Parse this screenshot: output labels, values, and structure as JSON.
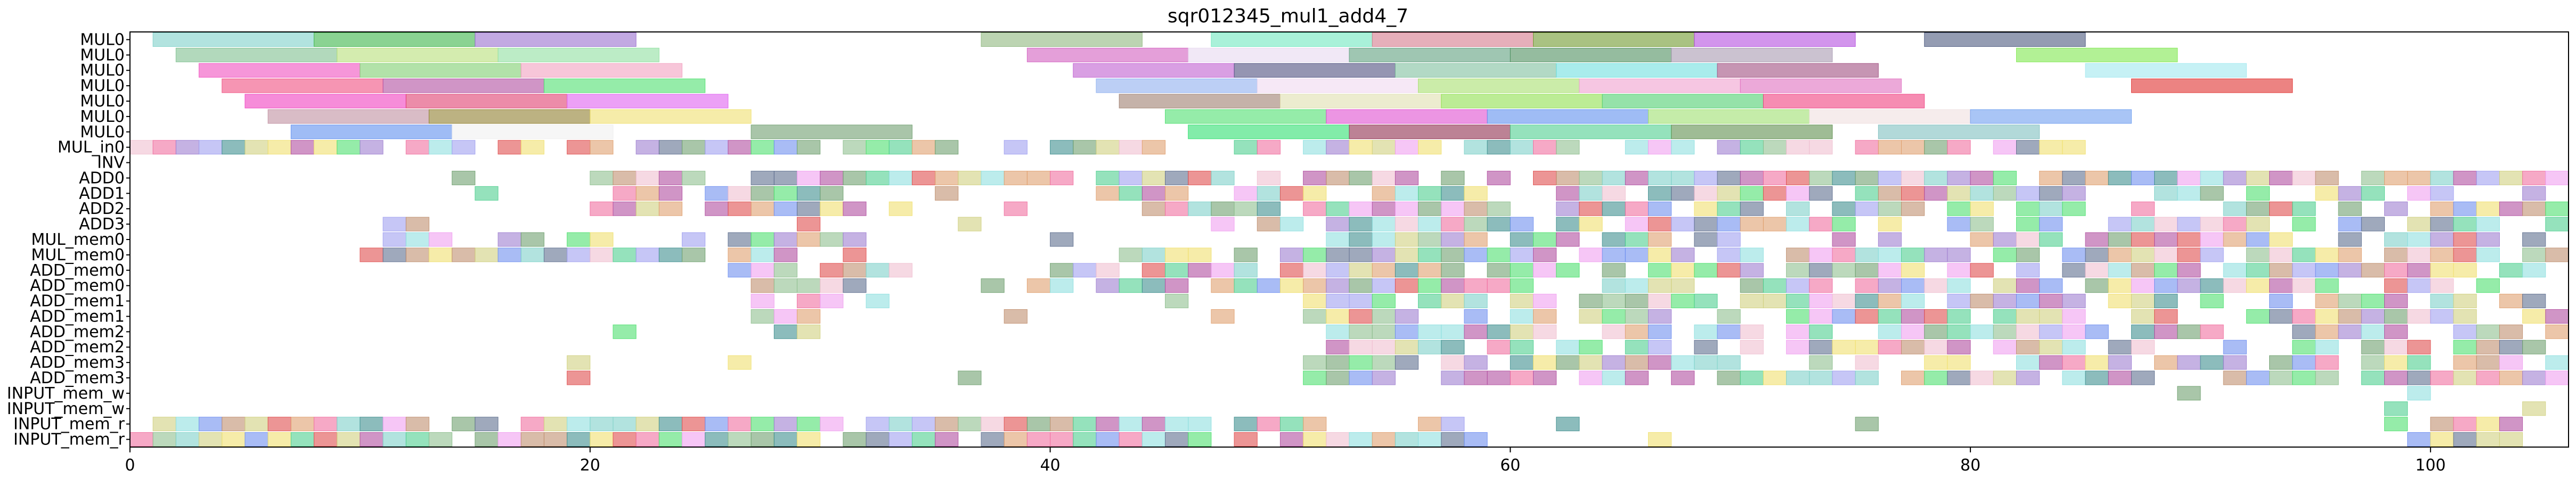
{
  "chart_data": {
    "type": "gantt",
    "title": "sqr012345_mul1_add4_7",
    "xlim": [
      0,
      106
    ],
    "xticks": [
      0,
      20,
      40,
      60,
      80,
      100
    ],
    "grid": false,
    "rows": [
      "MUL0",
      "MUL0",
      "MUL0",
      "MUL0",
      "MUL0",
      "MUL0",
      "MUL0",
      "MUL_in0",
      "INV",
      "ADD0",
      "ADD1",
      "ADD2",
      "ADD3",
      "MUL_mem0",
      "MUL_mem0",
      "ADD_mem0",
      "ADD_mem0",
      "ADD_mem1",
      "ADD_mem1",
      "ADD_mem2",
      "ADD_mem2",
      "ADD_mem3",
      "ADD_mem3",
      "INPUT_mem_w",
      "INPUT_mem_w",
      "INPUT_mem_r",
      "INPUT_mem_r"
    ],
    "bars": [
      {
        "row": 0,
        "start": 1,
        "end": 8,
        "color": "#7fd1c9"
      },
      {
        "row": 0,
        "start": 8,
        "end": 15,
        "color": "#3cb54a"
      },
      {
        "row": 0,
        "start": 15,
        "end": 22,
        "color": "#9a6fcf"
      },
      {
        "row": 0,
        "start": 37,
        "end": 44,
        "color": "#8fb77f"
      },
      {
        "row": 0,
        "start": 47,
        "end": 54,
        "color": "#6fe8c0"
      },
      {
        "row": 0,
        "start": 54,
        "end": 61,
        "color": "#d67a8c"
      },
      {
        "row": 0,
        "start": 61,
        "end": 68,
        "color": "#6f9a2f"
      },
      {
        "row": 0,
        "start": 68,
        "end": 75,
        "color": "#b44ee0"
      },
      {
        "row": 0,
        "start": 78,
        "end": 85,
        "color": "#4d5a7f"
      },
      {
        "row": 1,
        "start": 2,
        "end": 9,
        "color": "#7fbf8f"
      },
      {
        "row": 1,
        "start": 9,
        "end": 16,
        "color": "#b8e07a"
      },
      {
        "row": 1,
        "start": 16,
        "end": 23,
        "color": "#8fe0a0"
      },
      {
        "row": 1,
        "start": 39,
        "end": 46,
        "color": "#d25fc0"
      },
      {
        "row": 1,
        "start": 46,
        "end": 53,
        "color": "#e8d8f0"
      },
      {
        "row": 1,
        "start": 53,
        "end": 60,
        "color": "#5fa07f"
      },
      {
        "row": 1,
        "start": 60,
        "end": 67,
        "color": "#4f8f5f"
      },
      {
        "row": 1,
        "start": 67,
        "end": 74,
        "color": "#a89ab0"
      },
      {
        "row": 1,
        "start": 82,
        "end": 89,
        "color": "#7fe84f"
      },
      {
        "row": 2,
        "start": 3,
        "end": 10,
        "color": "#f050c0"
      },
      {
        "row": 2,
        "start": 10,
        "end": 17,
        "color": "#7fcf70"
      },
      {
        "row": 2,
        "start": 17,
        "end": 24,
        "color": "#f2a0c0"
      },
      {
        "row": 2,
        "start": 41,
        "end": 48,
        "color": "#c05fd0"
      },
      {
        "row": 2,
        "start": 48,
        "end": 55,
        "color": "#4f4f7f"
      },
      {
        "row": 2,
        "start": 55,
        "end": 62,
        "color": "#7fbf9f"
      },
      {
        "row": 2,
        "start": 62,
        "end": 69,
        "color": "#6fe0e0"
      },
      {
        "row": 2,
        "start": 69,
        "end": 76,
        "color": "#a04f80"
      },
      {
        "row": 2,
        "start": 85,
        "end": 92,
        "color": "#a0e8ef"
      },
      {
        "row": 3,
        "start": 4,
        "end": 11,
        "color": "#f04f80"
      },
      {
        "row": 3,
        "start": 11,
        "end": 18,
        "color": "#b04fa0"
      },
      {
        "row": 3,
        "start": 18,
        "end": 25,
        "color": "#4fe06f"
      },
      {
        "row": 3,
        "start": 42,
        "end": 49,
        "color": "#8fafef"
      },
      {
        "row": 3,
        "start": 49,
        "end": 56,
        "color": "#f0d8f0"
      },
      {
        "row": 3,
        "start": 56,
        "end": 63,
        "color": "#a8e06f"
      },
      {
        "row": 3,
        "start": 63,
        "end": 70,
        "color": "#f0a0cf"
      },
      {
        "row": 3,
        "start": 70,
        "end": 77,
        "color": "#e06fc0"
      },
      {
        "row": 3,
        "start": 87,
        "end": 94,
        "color": "#e0302f"
      },
      {
        "row": 4,
        "start": 5,
        "end": 12,
        "color": "#f040c0"
      },
      {
        "row": 4,
        "start": 12,
        "end": 19,
        "color": "#e0406f"
      },
      {
        "row": 4,
        "start": 19,
        "end": 26,
        "color": "#e060f0"
      },
      {
        "row": 4,
        "start": 43,
        "end": 50,
        "color": "#9f7f6f"
      },
      {
        "row": 4,
        "start": 50,
        "end": 57,
        "color": "#e0e0af"
      },
      {
        "row": 4,
        "start": 57,
        "end": 64,
        "color": "#8fe04f"
      },
      {
        "row": 4,
        "start": 64,
        "end": 71,
        "color": "#4fcf6f"
      },
      {
        "row": 4,
        "start": 71,
        "end": 78,
        "color": "#f0407f"
      },
      {
        "row": 5,
        "start": 6,
        "end": 13,
        "color": "#c08fa0"
      },
      {
        "row": 5,
        "start": 13,
        "end": 20,
        "color": "#8f7f2f"
      },
      {
        "row": 5,
        "start": 20,
        "end": 27,
        "color": "#f0e06f"
      },
      {
        "row": 5,
        "start": 45,
        "end": 52,
        "color": "#4fe06f"
      },
      {
        "row": 5,
        "start": 52,
        "end": 59,
        "color": "#e04fd0"
      },
      {
        "row": 5,
        "start": 59,
        "end": 66,
        "color": "#5f8fef"
      },
      {
        "row": 5,
        "start": 66,
        "end": 73,
        "color": "#9fe06f"
      },
      {
        "row": 5,
        "start": 73,
        "end": 80,
        "color": "#f0e0e0"
      },
      {
        "row": 5,
        "start": 80,
        "end": 87,
        "color": "#6f9ff0"
      },
      {
        "row": 6,
        "start": 7,
        "end": 14,
        "color": "#5f8fef"
      },
      {
        "row": 6,
        "start": 14,
        "end": 21,
        "color": "#f0f0f0"
      },
      {
        "row": 6,
        "start": 27,
        "end": 34,
        "color": "#6f9f6f"
      },
      {
        "row": 6,
        "start": 46,
        "end": 53,
        "color": "#2fe06f"
      },
      {
        "row": 6,
        "start": 53,
        "end": 60,
        "color": "#8f2f4f"
      },
      {
        "row": 6,
        "start": 60,
        "end": 67,
        "color": "#4fcf8f"
      },
      {
        "row": 6,
        "start": 67,
        "end": 74,
        "color": "#5f8f4f"
      },
      {
        "row": 6,
        "start": 76,
        "end": 83,
        "color": "#7fbfbf"
      }
    ],
    "dense_rows": {
      "7": {
        "slots": [
          [
            0,
            36
          ],
          [
            38,
            39
          ],
          [
            40,
            45
          ],
          [
            47,
            63
          ],
          [
            65,
            85
          ]
        ],
        "fill": 0.92
      },
      "8": {
        "slots": [],
        "fill": 0
      },
      "9": {
        "slots": [
          [
            14,
            15
          ],
          [
            20,
            106
          ]
        ],
        "fill": 0.85
      },
      "10": {
        "slots": [
          [
            15,
            16
          ],
          [
            17,
            18
          ],
          [
            21,
            31
          ],
          [
            35,
            36
          ],
          [
            42,
            106
          ]
        ],
        "fill": 0.8
      },
      "11": {
        "slots": [
          [
            20,
            24
          ],
          [
            25,
            34
          ],
          [
            38,
            39
          ],
          [
            44,
            106
          ]
        ],
        "fill": 0.78
      },
      "12": {
        "slots": [
          [
            11,
            13
          ],
          [
            29,
            30
          ],
          [
            36,
            37
          ],
          [
            47,
            106
          ]
        ],
        "fill": 0.8
      },
      "13": {
        "slots": [
          [
            10,
            32
          ],
          [
            40,
            42
          ],
          [
            52,
            106
          ]
        ],
        "fill": 0.7
      },
      "14": {
        "slots": [
          [
            10,
            32
          ],
          [
            43,
            106
          ]
        ],
        "fill": 0.75
      },
      "15": {
        "slots": [
          [
            26,
            34
          ],
          [
            40,
            106
          ]
        ],
        "fill": 0.85
      },
      "16": {
        "slots": [
          [
            27,
            32
          ],
          [
            37,
            106
          ]
        ],
        "fill": 0.8
      },
      "17": {
        "slots": [
          [
            27,
            33
          ],
          [
            45,
            46
          ],
          [
            51,
            106
          ]
        ],
        "fill": 0.78
      },
      "18": {
        "slots": [
          [
            27,
            30
          ],
          [
            38,
            39
          ],
          [
            47,
            48
          ],
          [
            51,
            106
          ]
        ],
        "fill": 0.75
      },
      "19": {
        "slots": [
          [
            21,
            22
          ],
          [
            28,
            30
          ],
          [
            51,
            106
          ]
        ],
        "fill": 0.75
      },
      "20": {
        "slots": [
          [
            21,
            22
          ],
          [
            29,
            30
          ],
          [
            51,
            106
          ]
        ],
        "fill": 0.72
      },
      "21": {
        "slots": [
          [
            19,
            20
          ],
          [
            26,
            27
          ],
          [
            37,
            38
          ],
          [
            51,
            106
          ]
        ],
        "fill": 0.72
      },
      "22": {
        "slots": [
          [
            19,
            20
          ],
          [
            36,
            37
          ],
          [
            51,
            106
          ]
        ],
        "fill": 0.7
      },
      "23": {
        "slots": [
          [
            89,
            90
          ],
          [
            99,
            100
          ]
        ],
        "fill": 1
      },
      "24": {
        "slots": [
          [
            98,
            99
          ],
          [
            104,
            105
          ]
        ],
        "fill": 1
      },
      "25": {
        "slots": [
          [
            0,
            52
          ],
          [
            56,
            59
          ],
          [
            62,
            63
          ],
          [
            70,
            71
          ],
          [
            75,
            76
          ],
          [
            98,
            99
          ],
          [
            100,
            104
          ]
        ],
        "fill": 0.9
      },
      "26": {
        "slots": [
          [
            0,
            59
          ],
          [
            66,
            67
          ],
          [
            99,
            104
          ]
        ],
        "fill": 0.95
      }
    }
  }
}
